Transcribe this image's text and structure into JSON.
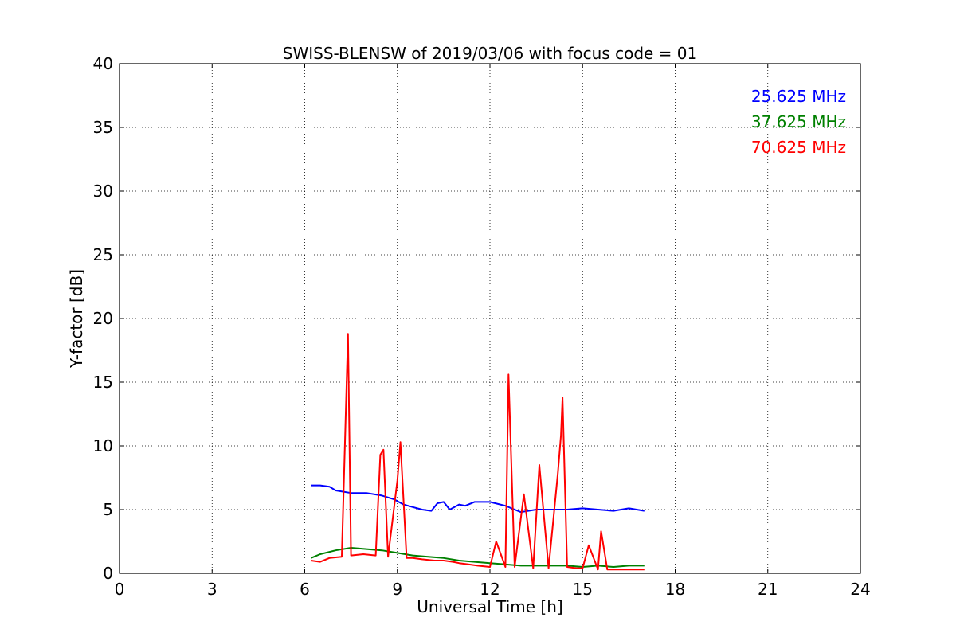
{
  "chart_data": {
    "type": "line",
    "title": "SWISS-BLENSW of 2019/03/06 with focus code = 01",
    "xlabel": "Universal Time [h]",
    "ylabel": "Y-factor [dB]",
    "xlim": [
      0,
      24
    ],
    "ylim": [
      0,
      40
    ],
    "xticks": [
      0,
      3,
      6,
      9,
      12,
      15,
      18,
      21,
      24
    ],
    "yticks": [
      0,
      5,
      10,
      15,
      20,
      25,
      30,
      35,
      40
    ],
    "grid": true,
    "legend_position": "top-right",
    "series": [
      {
        "name": "25.625 MHz",
        "color": "#0000ff",
        "x": [
          6.2,
          6.5,
          6.8,
          7.0,
          7.5,
          8.0,
          8.5,
          8.9,
          9.2,
          9.5,
          9.8,
          10.1,
          10.3,
          10.5,
          10.7,
          11.0,
          11.2,
          11.5,
          12.0,
          12.5,
          12.8,
          13.0,
          13.5,
          14.0,
          14.5,
          15.0,
          15.5,
          16.0,
          16.5,
          17.0
        ],
        "y": [
          6.9,
          6.9,
          6.8,
          6.5,
          6.3,
          6.3,
          6.1,
          5.8,
          5.4,
          5.2,
          5.0,
          4.9,
          5.5,
          5.6,
          5.0,
          5.4,
          5.3,
          5.6,
          5.6,
          5.3,
          5.0,
          4.8,
          5.0,
          5.0,
          5.0,
          5.1,
          5.0,
          4.9,
          5.1,
          4.9
        ]
      },
      {
        "name": "37.625 MHz",
        "color": "#008000",
        "x": [
          6.2,
          6.5,
          7.0,
          7.5,
          8.0,
          8.5,
          9.0,
          9.5,
          10.0,
          10.5,
          11.0,
          11.5,
          12.0,
          12.5,
          13.0,
          13.5,
          14.0,
          14.5,
          15.0,
          15.5,
          16.0,
          16.5,
          17.0
        ],
        "y": [
          1.2,
          1.5,
          1.8,
          2.0,
          1.9,
          1.8,
          1.6,
          1.4,
          1.3,
          1.2,
          1.0,
          0.9,
          0.8,
          0.7,
          0.6,
          0.6,
          0.6,
          0.6,
          0.5,
          0.6,
          0.5,
          0.6,
          0.6
        ]
      },
      {
        "name": "70.625 MHz",
        "color": "#ff0000",
        "x": [
          6.2,
          6.5,
          6.8,
          7.2,
          7.4,
          7.5,
          7.9,
          8.3,
          8.45,
          8.55,
          8.7,
          9.0,
          9.1,
          9.3,
          9.5,
          9.8,
          10.2,
          10.5,
          10.8,
          11.0,
          11.3,
          11.6,
          12.0,
          12.2,
          12.5,
          12.6,
          12.8,
          13.1,
          13.4,
          13.6,
          13.9,
          14.2,
          14.3,
          14.35,
          14.5,
          14.8,
          15.0,
          15.2,
          15.5,
          15.6,
          15.8,
          16.2,
          16.6,
          17.0
        ],
        "y": [
          1.0,
          0.9,
          1.2,
          1.3,
          18.8,
          1.4,
          1.5,
          1.4,
          9.3,
          9.7,
          1.3,
          7.3,
          10.3,
          1.2,
          1.2,
          1.1,
          1.0,
          1.0,
          0.9,
          0.8,
          0.7,
          0.6,
          0.5,
          2.5,
          0.5,
          15.6,
          0.5,
          6.2,
          0.4,
          8.5,
          0.4,
          7.9,
          10.8,
          13.8,
          0.5,
          0.4,
          0.4,
          2.2,
          0.3,
          3.3,
          0.3,
          0.3,
          0.3,
          0.3
        ]
      }
    ]
  }
}
